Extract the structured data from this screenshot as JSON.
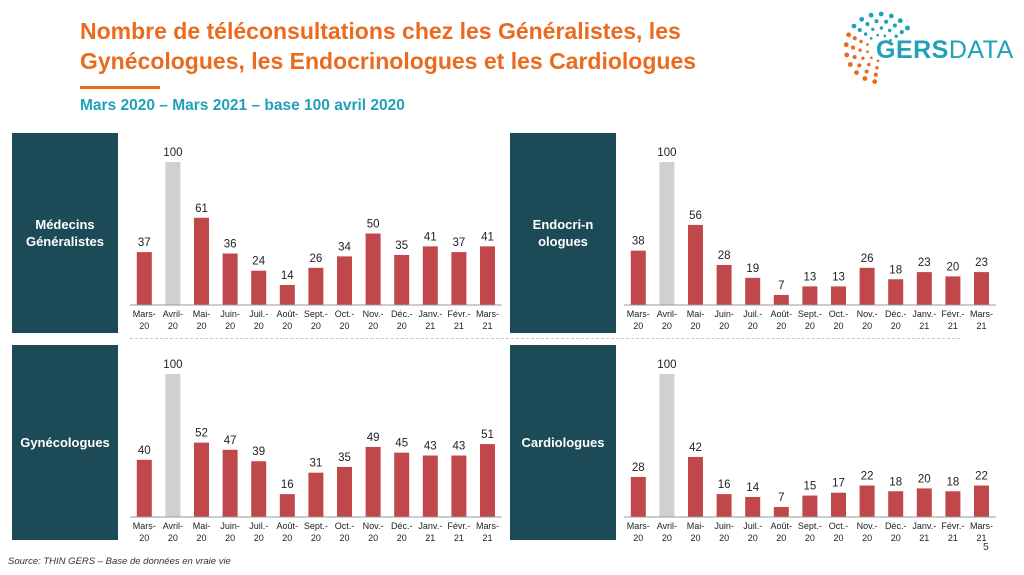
{
  "header": {
    "title": "Nombre de téléconsultations chez les Généralistes, les Gynécologues, les Endocrinologues et les Cardiologues",
    "subtitle": "Mars 2020 – Mars 2021 – base 100 avril 2020"
  },
  "logo": {
    "text_a": "GERS",
    "text_b": "DATA"
  },
  "footer": {
    "source": "Source: THIN GERS – Base de données en vraie vie",
    "page": "5"
  },
  "colors": {
    "bar": "#c0474a",
    "highlight": "#d0d0d2",
    "label_bg": "#1c4a56",
    "title": "#ea6a1e",
    "subtitle": "#1fa2b8"
  },
  "chart_data": [
    {
      "type": "bar",
      "title": "Médecins Généralistes",
      "categories": [
        "Mars-20",
        "Avril-20",
        "Mai-20",
        "Juin-20",
        "Juil.-20",
        "Août-20",
        "Sept.-20",
        "Oct.-20",
        "Nov.-20",
        "Déc.-20",
        "Janv.-21",
        "Févr.-21",
        "Mars-21"
      ],
      "values": [
        37,
        100,
        61,
        36,
        24,
        14,
        26,
        34,
        50,
        35,
        41,
        37,
        41
      ],
      "highlight_index": 1,
      "ylim": [
        0,
        100
      ]
    },
    {
      "type": "bar",
      "title": "Endocri-nologues",
      "categories": [
        "Mars-20",
        "Avril-20",
        "Mai-20",
        "Juin-20",
        "Juil.-20",
        "Août-20",
        "Sept.-20",
        "Oct.-20",
        "Nov.-20",
        "Déc.-20",
        "Janv.-21",
        "Févr.-21",
        "Mars-21"
      ],
      "values": [
        38,
        100,
        56,
        28,
        19,
        7,
        13,
        13,
        26,
        18,
        23,
        20,
        23
      ],
      "highlight_index": 1,
      "ylim": [
        0,
        100
      ]
    },
    {
      "type": "bar",
      "title": "Gynécologues",
      "categories": [
        "Mars-20",
        "Avril-20",
        "Mai-20",
        "Juin-20",
        "Juil.-20",
        "Août-20",
        "Sept.-20",
        "Oct.-20",
        "Nov.-20",
        "Déc.-20",
        "Janv.-21",
        "Févr.-21",
        "Mars-21"
      ],
      "values": [
        40,
        100,
        52,
        47,
        39,
        16,
        31,
        35,
        49,
        45,
        43,
        43,
        51
      ],
      "highlight_index": 1,
      "ylim": [
        0,
        100
      ]
    },
    {
      "type": "bar",
      "title": "Cardiologues",
      "categories": [
        "Mars-20",
        "Avril-20",
        "Mai-20",
        "Juin-20",
        "Juil.-20",
        "Août-20",
        "Sept.-20",
        "Oct.-20",
        "Nov.-20",
        "Déc.-20",
        "Janv.-21",
        "Févr.-21",
        "Mars-21"
      ],
      "values": [
        28,
        100,
        42,
        16,
        14,
        7,
        15,
        17,
        22,
        18,
        20,
        18,
        22
      ],
      "highlight_index": 1,
      "ylim": [
        0,
        100
      ]
    }
  ]
}
